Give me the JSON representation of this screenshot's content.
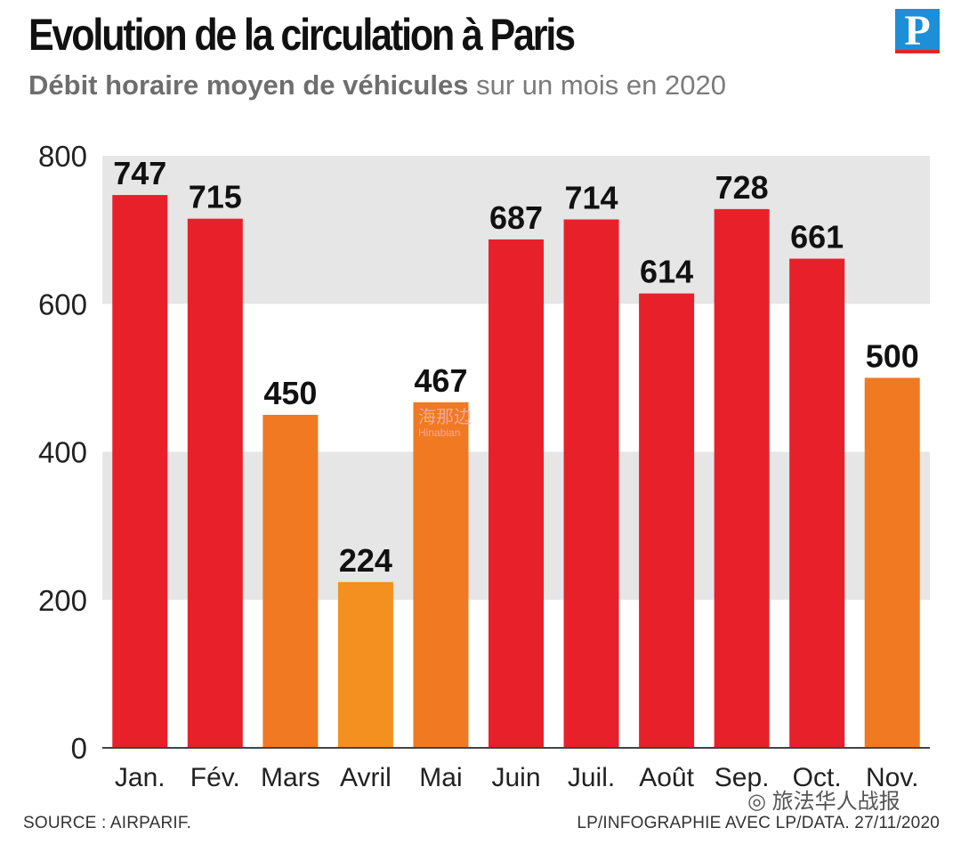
{
  "header": {
    "title": "Evolution de la circulation à Paris",
    "subtitle_bold": "Débit horaire moyen de véhicules",
    "subtitle_rest": "sur un mois en 2020",
    "logo_letter": "P"
  },
  "chart_data": {
    "type": "bar",
    "title": "Evolution de la circulation à Paris",
    "subtitle": "Débit horaire moyen de véhicules sur un mois en 2020",
    "categories": [
      "Jan.",
      "Fév.",
      "Mars",
      "Avril",
      "Mai",
      "Juin",
      "Juil.",
      "Août",
      "Sep.",
      "Oct.",
      "Nov."
    ],
    "values": [
      747,
      715,
      450,
      224,
      467,
      687,
      714,
      614,
      728,
      661,
      500
    ],
    "bar_colors": [
      "#e8202a",
      "#e8202a",
      "#f07921",
      "#f39020",
      "#f07921",
      "#e8202a",
      "#e8202a",
      "#e8202a",
      "#e8202a",
      "#e8202a",
      "#f07921"
    ],
    "yticks": [
      0,
      200,
      400,
      600,
      800
    ],
    "ylim": [
      0,
      800
    ],
    "band_color": "#e6e6e6",
    "xlabel": "",
    "ylabel": ""
  },
  "footer": {
    "source": "SOURCE : AIRPARIF.",
    "credit": "LP/INFOGRAPHIE AVEC LP/DATA.  27/11/2020"
  },
  "overlays": {
    "watermark_cn": "海那边",
    "watermark_en": "Hinabian",
    "wechat_label": "旅法华人战报"
  }
}
